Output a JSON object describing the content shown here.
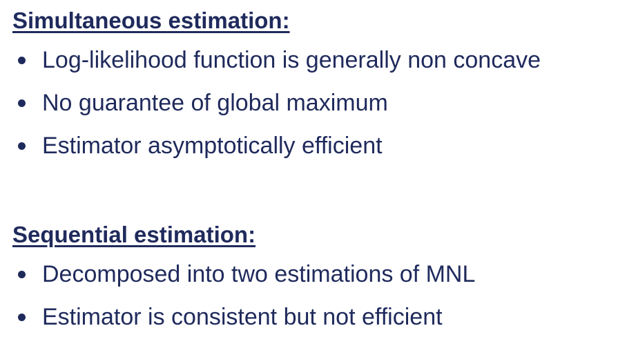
{
  "sections": [
    {
      "heading": "Simultaneous estimation:",
      "bullets": [
        "Log-likelihood function is generally non concave",
        "No guarantee of global maximum",
        "Estimator asymptotically efficient"
      ]
    },
    {
      "heading": "Sequential estimation:",
      "bullets": [
        "Decomposed into two estimations of MNL",
        "Estimator is consistent but not efficient"
      ]
    }
  ],
  "colors": {
    "text": "#1f2a5c",
    "background": "#ffffff"
  }
}
